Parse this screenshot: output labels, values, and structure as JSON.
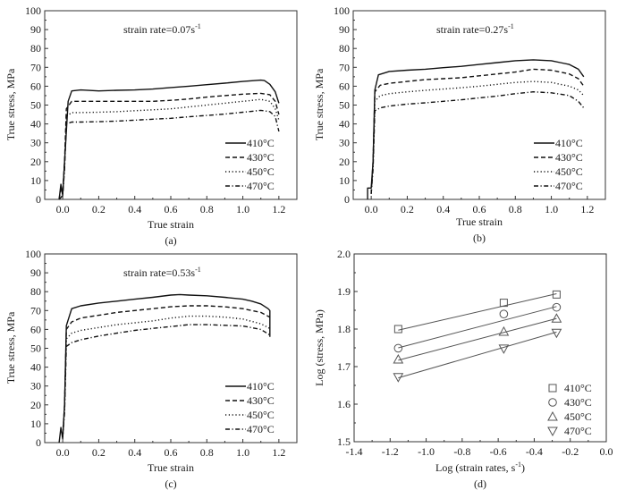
{
  "chart_data": [
    {
      "panel": "(a)",
      "type": "line",
      "annotation": "strain rate=0.07s",
      "annotation_sup": "-1",
      "xlabel": "True strain",
      "ylabel": "True stress, MPa",
      "xlim": [
        -0.1,
        1.3
      ],
      "ylim": [
        0,
        100
      ],
      "xticks": [
        "0.0",
        "0.2",
        "0.4",
        "0.6",
        "0.8",
        "1.0",
        "1.2"
      ],
      "xtick_values": [
        0,
        0.2,
        0.4,
        0.6,
        0.8,
        1.0,
        1.2
      ],
      "yticks": [
        "0",
        "10",
        "20",
        "30",
        "40",
        "50",
        "60",
        "70",
        "80",
        "90",
        "100"
      ],
      "ytick_values": [
        0,
        10,
        20,
        30,
        40,
        50,
        60,
        70,
        80,
        90,
        100
      ],
      "legend_position": "lower-right",
      "series": [
        {
          "name": "410°C",
          "style": "solid",
          "x": [
            -0.02,
            -0.01,
            0.0,
            0.01,
            0.03,
            0.05,
            0.1,
            0.2,
            0.3,
            0.4,
            0.5,
            0.6,
            0.7,
            0.8,
            0.9,
            1.0,
            1.1,
            1.12,
            1.15,
            1.18,
            1.2
          ],
          "y": [
            0,
            8,
            2,
            20,
            52,
            57.5,
            58,
            57.5,
            57.8,
            58,
            58.5,
            59.3,
            60,
            60.8,
            61.6,
            62.5,
            63.2,
            63,
            61,
            57,
            51
          ]
        },
        {
          "name": "430°C",
          "style": "dashed",
          "x": [
            -0.02,
            -0.01,
            0.0,
            0.01,
            0.02,
            0.05,
            0.1,
            0.2,
            0.3,
            0.4,
            0.5,
            0.6,
            0.7,
            0.8,
            0.9,
            1.0,
            1.1,
            1.15,
            1.18,
            1.2
          ],
          "y": [
            0,
            6,
            3,
            20,
            48,
            52,
            52,
            52,
            52,
            52,
            52,
            52.5,
            53.2,
            54.2,
            55,
            55.8,
            56.2,
            55.5,
            52,
            45
          ]
        },
        {
          "name": "450°C",
          "style": "dotted",
          "x": [
            -0.02,
            0.0,
            0.01,
            0.02,
            0.05,
            0.1,
            0.2,
            0.3,
            0.4,
            0.5,
            0.6,
            0.7,
            0.8,
            0.9,
            1.0,
            1.1,
            1.15,
            1.18,
            1.2
          ],
          "y": [
            0,
            2,
            18,
            44,
            46,
            46,
            46.2,
            46.5,
            47,
            47.5,
            48,
            49,
            50,
            51,
            52,
            53,
            52,
            48,
            42
          ]
        },
        {
          "name": "470°C",
          "style": "dashdot",
          "x": [
            -0.02,
            0.0,
            0.01,
            0.02,
            0.05,
            0.1,
            0.2,
            0.3,
            0.4,
            0.5,
            0.6,
            0.7,
            0.8,
            0.9,
            1.0,
            1.1,
            1.15,
            1.18,
            1.2
          ],
          "y": [
            0,
            2,
            16,
            40,
            41,
            41,
            41.2,
            41.5,
            42,
            42.5,
            43,
            43.8,
            44.5,
            45.2,
            46.2,
            47.2,
            46.5,
            44,
            36
          ]
        }
      ]
    },
    {
      "panel": "(b)",
      "type": "line",
      "annotation": "strain rate=0.27s",
      "annotation_sup": "-1",
      "xlabel": "True strain",
      "ylabel": "True stress, MPa",
      "xlim": [
        -0.1,
        1.3
      ],
      "ylim": [
        0,
        100
      ],
      "xticks": [
        "0.0",
        "0.2",
        "0.4",
        "0.6",
        "0.8",
        "1.0",
        "1.2"
      ],
      "xtick_values": [
        0,
        0.2,
        0.4,
        0.6,
        0.8,
        1.0,
        1.2
      ],
      "yticks": [
        "0",
        "10",
        "20",
        "30",
        "40",
        "50",
        "60",
        "70",
        "80",
        "90",
        "100"
      ],
      "ytick_values": [
        0,
        10,
        20,
        30,
        40,
        50,
        60,
        70,
        80,
        90,
        100
      ],
      "legend_position": "lower-right",
      "series": [
        {
          "name": "410°C",
          "style": "solid",
          "x": [
            -0.02,
            -0.02,
            0.0,
            0.01,
            0.02,
            0.04,
            0.1,
            0.2,
            0.3,
            0.4,
            0.5,
            0.6,
            0.7,
            0.8,
            0.9,
            1.0,
            1.05,
            1.1,
            1.15,
            1.18
          ],
          "y": [
            0,
            6,
            6,
            20,
            58,
            66,
            67.8,
            68.5,
            69,
            69.8,
            70.5,
            71.5,
            72.5,
            73.5,
            74,
            73.5,
            72.5,
            71.5,
            69,
            65
          ]
        },
        {
          "name": "430°C",
          "style": "dashed",
          "x": [
            0.0,
            0.01,
            0.02,
            0.05,
            0.1,
            0.2,
            0.3,
            0.4,
            0.5,
            0.6,
            0.7,
            0.8,
            0.9,
            1.0,
            1.1,
            1.15,
            1.18
          ],
          "y": [
            3,
            20,
            57,
            60.5,
            61.5,
            62.5,
            63.5,
            64,
            64.5,
            65.5,
            66.5,
            67.5,
            69,
            68.5,
            66.5,
            64,
            60
          ]
        },
        {
          "name": "450°C",
          "style": "dotted",
          "x": [
            0.0,
            0.01,
            0.02,
            0.05,
            0.1,
            0.2,
            0.3,
            0.4,
            0.5,
            0.6,
            0.7,
            0.8,
            0.9,
            1.0,
            1.1,
            1.15,
            1.18
          ],
          "y": [
            3,
            18,
            52,
            55,
            56,
            57,
            57.8,
            58.5,
            59.2,
            60,
            61,
            62,
            62.5,
            62,
            60,
            58,
            55
          ]
        },
        {
          "name": "470°C",
          "style": "dashdot",
          "x": [
            0.0,
            0.01,
            0.02,
            0.05,
            0.1,
            0.2,
            0.3,
            0.4,
            0.5,
            0.6,
            0.7,
            0.8,
            0.9,
            1.0,
            1.1,
            1.15,
            1.18
          ],
          "y": [
            3,
            16,
            47,
            48.5,
            49.5,
            50.5,
            51.2,
            52,
            52.8,
            53.8,
            54.8,
            56,
            57,
            56.5,
            55,
            52,
            48.5
          ]
        }
      ]
    },
    {
      "panel": "(c)",
      "type": "line",
      "annotation": "strain rate=0.53s",
      "annotation_sup": "-1",
      "xlabel": "True strain",
      "ylabel": "True stress, MPa",
      "xlim": [
        -0.1,
        1.3
      ],
      "ylim": [
        0,
        100
      ],
      "xticks": [
        "0.0",
        "0.2",
        "0.4",
        "0.6",
        "0.8",
        "1.0",
        "1.2"
      ],
      "xtick_values": [
        0,
        0.2,
        0.4,
        0.6,
        0.8,
        1.0,
        1.2
      ],
      "yticks": [
        "0",
        "10",
        "20",
        "30",
        "40",
        "50",
        "60",
        "70",
        "80",
        "90",
        "100"
      ],
      "ytick_values": [
        0,
        10,
        20,
        30,
        40,
        50,
        60,
        70,
        80,
        90,
        100
      ],
      "legend_position": "lower-right",
      "series": [
        {
          "name": "410°C",
          "style": "solid",
          "x": [
            -0.02,
            -0.01,
            0.0,
            0.01,
            0.02,
            0.05,
            0.1,
            0.2,
            0.3,
            0.4,
            0.5,
            0.6,
            0.65,
            0.7,
            0.8,
            0.9,
            1.0,
            1.05,
            1.1,
            1.14,
            1.15,
            1.15
          ],
          "y": [
            0,
            8,
            2,
            20,
            62,
            71,
            72.5,
            74,
            75,
            76,
            77,
            78.2,
            78.5,
            78.2,
            77.8,
            77,
            76,
            75,
            73.5,
            71,
            70,
            56
          ]
        },
        {
          "name": "430°C",
          "style": "dashed",
          "x": [
            0.0,
            0.01,
            0.02,
            0.05,
            0.1,
            0.2,
            0.3,
            0.4,
            0.5,
            0.6,
            0.7,
            0.8,
            0.9,
            1.0,
            1.1,
            1.15
          ],
          "y": [
            3,
            20,
            60,
            64,
            66,
            67.5,
            69,
            70,
            71,
            72,
            72.5,
            72.5,
            72,
            71,
            69,
            66.5
          ]
        },
        {
          "name": "450°C",
          "style": "dotted",
          "x": [
            0.0,
            0.01,
            0.02,
            0.05,
            0.1,
            0.2,
            0.3,
            0.4,
            0.5,
            0.6,
            0.7,
            0.8,
            0.9,
            1.0,
            1.1,
            1.15
          ],
          "y": [
            3,
            18,
            55,
            58,
            59.5,
            61,
            62.5,
            63.5,
            64.5,
            66,
            67,
            67,
            66.5,
            65.5,
            63,
            60.5
          ]
        },
        {
          "name": "470°C",
          "style": "dashdot",
          "x": [
            0.0,
            0.01,
            0.02,
            0.05,
            0.1,
            0.2,
            0.3,
            0.4,
            0.5,
            0.6,
            0.7,
            0.8,
            0.9,
            1.0,
            1.1,
            1.15
          ],
          "y": [
            3,
            16,
            51,
            53,
            54.5,
            56.5,
            58,
            59.5,
            60.5,
            61.5,
            62.5,
            62.5,
            62.2,
            61.8,
            60,
            57
          ]
        }
      ]
    },
    {
      "panel": "(d)",
      "type": "scatter",
      "xlabel": "Log (strain rates, s",
      "xlabel_sup": "-1",
      "xlabel_end": ")",
      "ylabel": "Log (stress, MPa)",
      "xlim": [
        -1.4,
        0.0
      ],
      "ylim": [
        1.5,
        2.0
      ],
      "xticks": [
        "-1.4",
        "-1.2",
        "-1.0",
        "-0.8",
        "-0.6",
        "-0.4",
        "-0.2",
        "0.0"
      ],
      "xtick_values": [
        -1.4,
        -1.2,
        -1.0,
        -0.8,
        -0.6,
        -0.4,
        -0.2,
        0.0
      ],
      "yticks": [
        "1.5",
        "1.6",
        "1.7",
        "1.8",
        "1.9",
        "2.0"
      ],
      "ytick_values": [
        1.5,
        1.6,
        1.7,
        1.8,
        1.9,
        2.0
      ],
      "legend_position": "lower-right",
      "fit_lines": true,
      "series": [
        {
          "name": "410°C",
          "marker": "square",
          "x": [
            -1.155,
            -0.569,
            -0.276
          ],
          "y": [
            1.8,
            1.87,
            1.892
          ],
          "fit": [
            1.797,
            1.894
          ]
        },
        {
          "name": "430°C",
          "marker": "circle",
          "x": [
            -1.155,
            -0.569,
            -0.276
          ],
          "y": [
            1.749,
            1.84,
            1.858
          ],
          "fit": [
            1.75,
            1.86
          ]
        },
        {
          "name": "450°C",
          "marker": "triangle-up",
          "x": [
            -1.155,
            -0.569,
            -0.276
          ],
          "y": [
            1.719,
            1.793,
            1.828
          ],
          "fit": [
            1.717,
            1.828
          ]
        },
        {
          "name": "470°C",
          "marker": "triangle-down",
          "x": [
            -1.155,
            -0.569,
            -0.276
          ],
          "y": [
            1.672,
            1.748,
            1.79
          ],
          "fit": [
            1.67,
            1.792
          ]
        }
      ]
    }
  ],
  "captions": [
    "(a)",
    "(b)",
    "(c)",
    "(d)"
  ],
  "colors": {
    "axis": "#333333",
    "line": "#111111",
    "marker": "#555555",
    "fit": "#555555"
  }
}
